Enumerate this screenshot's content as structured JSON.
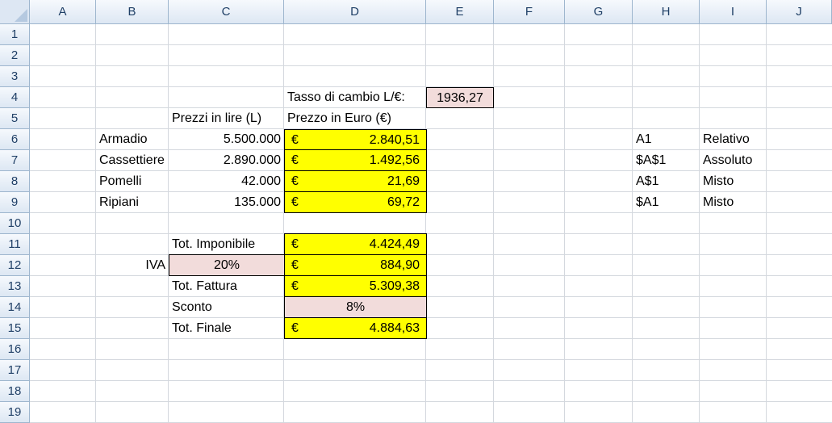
{
  "columns": [
    "A",
    "B",
    "C",
    "D",
    "E",
    "F",
    "G",
    "H",
    "I",
    "J"
  ],
  "rows": [
    "1",
    "2",
    "3",
    "4",
    "5",
    "6",
    "7",
    "8",
    "9",
    "10",
    "11",
    "12",
    "13",
    "14",
    "15",
    "16",
    "17",
    "18",
    "19"
  ],
  "cells": {
    "d4": "Tasso di cambio L/€:",
    "e4": "1936,27",
    "c5": "Prezzi in lire (L)",
    "d5": "Prezzo in Euro (€)",
    "items": [
      {
        "name": "Armadio",
        "lire": "5.500.000",
        "euro": "2.840,51"
      },
      {
        "name": "Cassettiere",
        "lire": "2.890.000",
        "euro": "1.492,56"
      },
      {
        "name": "Pomelli",
        "lire": "42.000",
        "euro": "21,69"
      },
      {
        "name": "Ripiani",
        "lire": "135.000",
        "euro": "69,72"
      }
    ],
    "refs": [
      {
        "ref": "A1",
        "type": "Relativo"
      },
      {
        "ref": "$A$1",
        "type": "Assoluto"
      },
      {
        "ref": "A$1",
        "type": "Misto"
      },
      {
        "ref": "$A1",
        "type": "Misto"
      }
    ],
    "c11": "Tot. Imponibile",
    "d11": "4.424,49",
    "b12": "IVA",
    "c12": "20%",
    "d12": "884,90",
    "c13": "Tot. Fattura",
    "d13": "5.309,38",
    "c14": "Sconto",
    "d14": "8%",
    "c15": "Tot. Finale",
    "d15": "4.884,63",
    "euro_symbol": "€"
  },
  "colors": {
    "highlight_yellow": "#ffff00",
    "highlight_pink": "#f2dcdb",
    "header_bg": "#dde7f3"
  }
}
